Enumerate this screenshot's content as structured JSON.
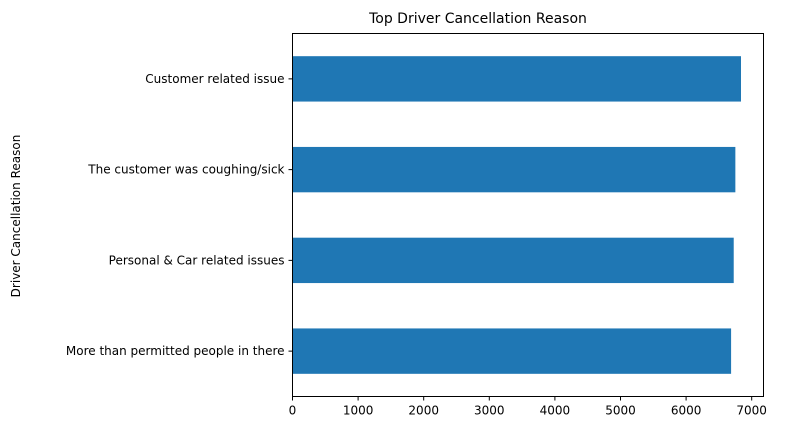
{
  "chart_data": {
    "type": "bar",
    "orientation": "horizontal",
    "title": "Top Driver Cancellation Reason",
    "xlabel": "",
    "ylabel": "Driver Cancellation Reason",
    "categories": [
      "Customer related issue",
      "The customer was coughing/sick",
      "Personal & Car related issues",
      "More than permitted people in there"
    ],
    "values": [
      6837,
      6751,
      6726,
      6686
    ],
    "xlim": [
      0,
      7180
    ],
    "xticks": [
      0,
      1000,
      2000,
      3000,
      4000,
      5000,
      6000,
      7000
    ],
    "bar_color": "#1f77b4",
    "grid": false,
    "legend": "none"
  }
}
